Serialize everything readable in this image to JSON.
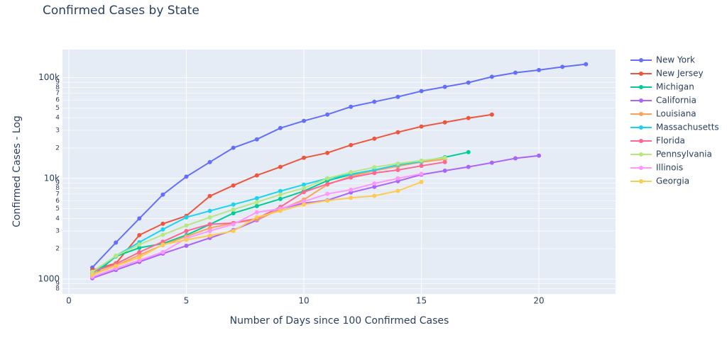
{
  "chart_data": {
    "type": "line",
    "title": "Confirmed Cases by State",
    "x_label": "Number of Days since 100 Confirmed Cases",
    "y_label": "Confirmed Cases - Log",
    "log_y": true,
    "grid": true,
    "legend": "right",
    "background": "#e5ecf6",
    "xlim": [
      -0.27,
      23.26
    ],
    "xticks": [
      0,
      5,
      10,
      15,
      20
    ],
    "ylim": [
      711,
      190000
    ],
    "yticks": [
      {
        "value": 800,
        "label": "8"
      },
      {
        "value": 900,
        "label": "9"
      },
      1000,
      {
        "value": 2000,
        "label": "2"
      },
      {
        "value": 3000,
        "label": "3"
      },
      {
        "value": 4000,
        "label": "4"
      },
      {
        "value": 5000,
        "label": "5"
      },
      {
        "value": 6000,
        "label": "6"
      },
      {
        "value": 7000,
        "label": "7"
      },
      {
        "value": 8000,
        "label": "8"
      },
      {
        "value": 9000,
        "label": "9"
      },
      {
        "value": 10000,
        "label": "10k"
      },
      {
        "value": 20000,
        "label": "2"
      },
      {
        "value": 30000,
        "label": "3"
      },
      {
        "value": 40000,
        "label": "4"
      },
      {
        "value": 50000,
        "label": "5"
      },
      {
        "value": 60000,
        "label": "6"
      },
      {
        "value": 70000,
        "label": "7"
      },
      {
        "value": 80000,
        "label": "8"
      },
      {
        "value": 90000,
        "label": "9"
      },
      {
        "value": 100000,
        "label": "100k"
      }
    ],
    "x": [
      1,
      2,
      3,
      4,
      5,
      6,
      7,
      8,
      9,
      10,
      11,
      12,
      13,
      14,
      15,
      16,
      17,
      18,
      19,
      20,
      21,
      22
    ],
    "series": [
      {
        "name": "New York",
        "color": "#636efa",
        "values": [
          1300,
          2300,
          4000,
          6900,
          10400,
          14500,
          20100,
          24400,
          31600,
          37200,
          43000,
          51400,
          57600,
          64500,
          73500,
          81000,
          89300,
          102000,
          112000,
          119000,
          128000,
          136000
        ]
      },
      {
        "name": "New Jersey",
        "color": "#ef553b",
        "values": [
          1230,
          1430,
          2730,
          3540,
          4240,
          6670,
          8500,
          10700,
          13000,
          16000,
          17900,
          21400,
          24800,
          28700,
          32700,
          36000,
          39700,
          43000,
          null,
          null,
          null,
          null
        ]
      },
      {
        "name": "Michigan",
        "color": "#00cc96",
        "values": [
          1070,
          1680,
          2040,
          2250,
          2730,
          3490,
          4510,
          5310,
          6240,
          7470,
          9500,
          10900,
          12100,
          13200,
          14700,
          16200,
          18200,
          null,
          null,
          null,
          null,
          null
        ]
      },
      {
        "name": "California",
        "color": "#ab63fa",
        "values": [
          1020,
          1230,
          1480,
          1790,
          2140,
          2560,
          3060,
          3840,
          4980,
          5670,
          6050,
          7230,
          8230,
          9380,
          10900,
          11900,
          13000,
          14300,
          15800,
          16800,
          null,
          null
        ]
      },
      {
        "name": "Louisiana",
        "color": "#ffa15a",
        "values": [
          1120,
          1360,
          1730,
          2180,
          2650,
          3210,
          3600,
          3900,
          4900,
          6150,
          8660,
          10500,
          11900,
          13200,
          14500,
          15500,
          null,
          null,
          null,
          null,
          null,
          null
        ]
      },
      {
        "name": "Massachusetts",
        "color": "#19d3f3",
        "values": [
          1140,
          1700,
          2320,
          3110,
          4100,
          4750,
          5490,
          6350,
          7470,
          8660,
          10000,
          11000,
          12100,
          13600,
          14700,
          null,
          null,
          null,
          null,
          null,
          null,
          null
        ]
      },
      {
        "name": "Florida",
        "color": "#ff6692",
        "values": [
          1180,
          1410,
          1850,
          2350,
          3000,
          3500,
          3600,
          4000,
          5200,
          7300,
          8800,
          10200,
          11300,
          12100,
          13300,
          14500,
          null,
          null,
          null,
          null,
          null,
          null
        ]
      },
      {
        "name": "Pennsylvania",
        "color": "#b6e880",
        "values": [
          1180,
          1700,
          2200,
          2750,
          3400,
          4100,
          4900,
          5800,
          6900,
          8000,
          10000,
          11500,
          12900,
          14000,
          15000,
          16000,
          null,
          null,
          null,
          null,
          null,
          null
        ]
      },
      {
        "name": "Illinois",
        "color": "#ff97ff",
        "values": [
          1050,
          1280,
          1540,
          1850,
          2540,
          3000,
          3500,
          4600,
          5000,
          5900,
          7000,
          7700,
          8900,
          10000,
          11100,
          null,
          null,
          null,
          null,
          null,
          null,
          null
        ]
      },
      {
        "name": "Georgia",
        "color": "#fecb52",
        "values": [
          1100,
          1350,
          1640,
          2200,
          2450,
          2700,
          3000,
          4100,
          4750,
          5500,
          6000,
          6400,
          6700,
          7500,
          9200,
          null,
          null,
          null,
          null,
          null,
          null,
          null
        ]
      }
    ]
  }
}
